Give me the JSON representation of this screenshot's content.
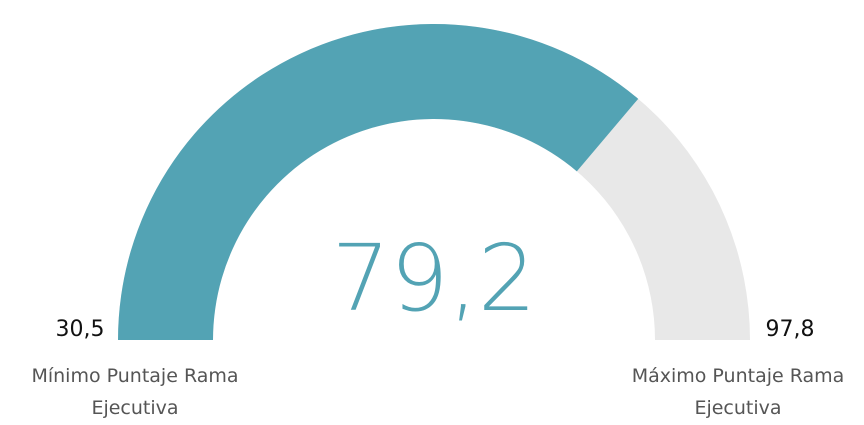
{
  "chart_data": {
    "type": "gauge",
    "value": 79.2,
    "value_label": "79,2",
    "color": "#53a3b4",
    "track_color": "#e8e8e8",
    "min": {
      "value": 30.5,
      "label": "30,5",
      "name": "Mínimo Puntaje Rama Ejecutiva"
    },
    "max": {
      "value": 97.8,
      "label": "97,8",
      "name": "Máximo Puntaje Rama Ejecutiva"
    }
  }
}
